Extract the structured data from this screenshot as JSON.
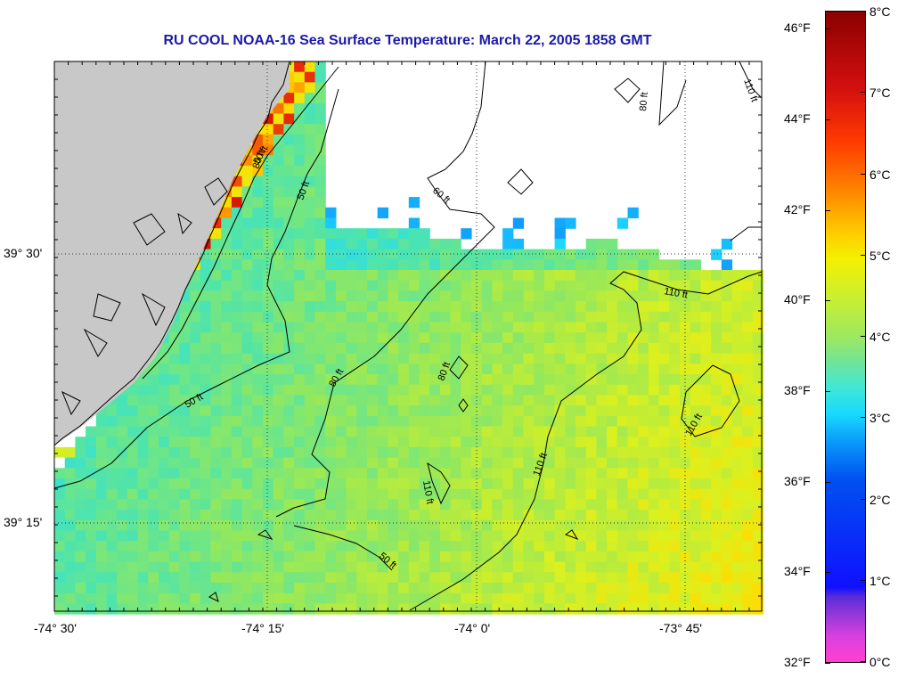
{
  "title": "RU COOL  NOAA-16  Sea Surface Temperature:  March 22, 2005 1858 GMT",
  "axes": {
    "x_ticks": [
      "-74° 30'",
      "-74° 15'",
      "-74° 0'",
      "-73° 45'"
    ],
    "y_ticks": [
      "39° 30'",
      "39° 15'"
    ]
  },
  "contours": {
    "labels": [
      "80 ft",
      "50 ft",
      "60 ft",
      "80 ft",
      "110 ft",
      "110 ft",
      "50 ft",
      "80 ft",
      "50 ft",
      "80 ft",
      "110 ft",
      "110 ft",
      "110 ft",
      "50 ft"
    ]
  },
  "colorbar": {
    "fahrenheit": [
      "46°F",
      "44°F",
      "42°F",
      "40°F",
      "38°F",
      "36°F",
      "34°F",
      "32°F"
    ],
    "celsius": [
      "8°C",
      "7°C",
      "6°C",
      "5°C",
      "4°C",
      "3°C",
      "2°C",
      "1°C",
      "0°C"
    ]
  },
  "colors": {
    "land": "#c8c8c8",
    "cloud": "#ffffff",
    "title": "#1a1aa8"
  }
}
